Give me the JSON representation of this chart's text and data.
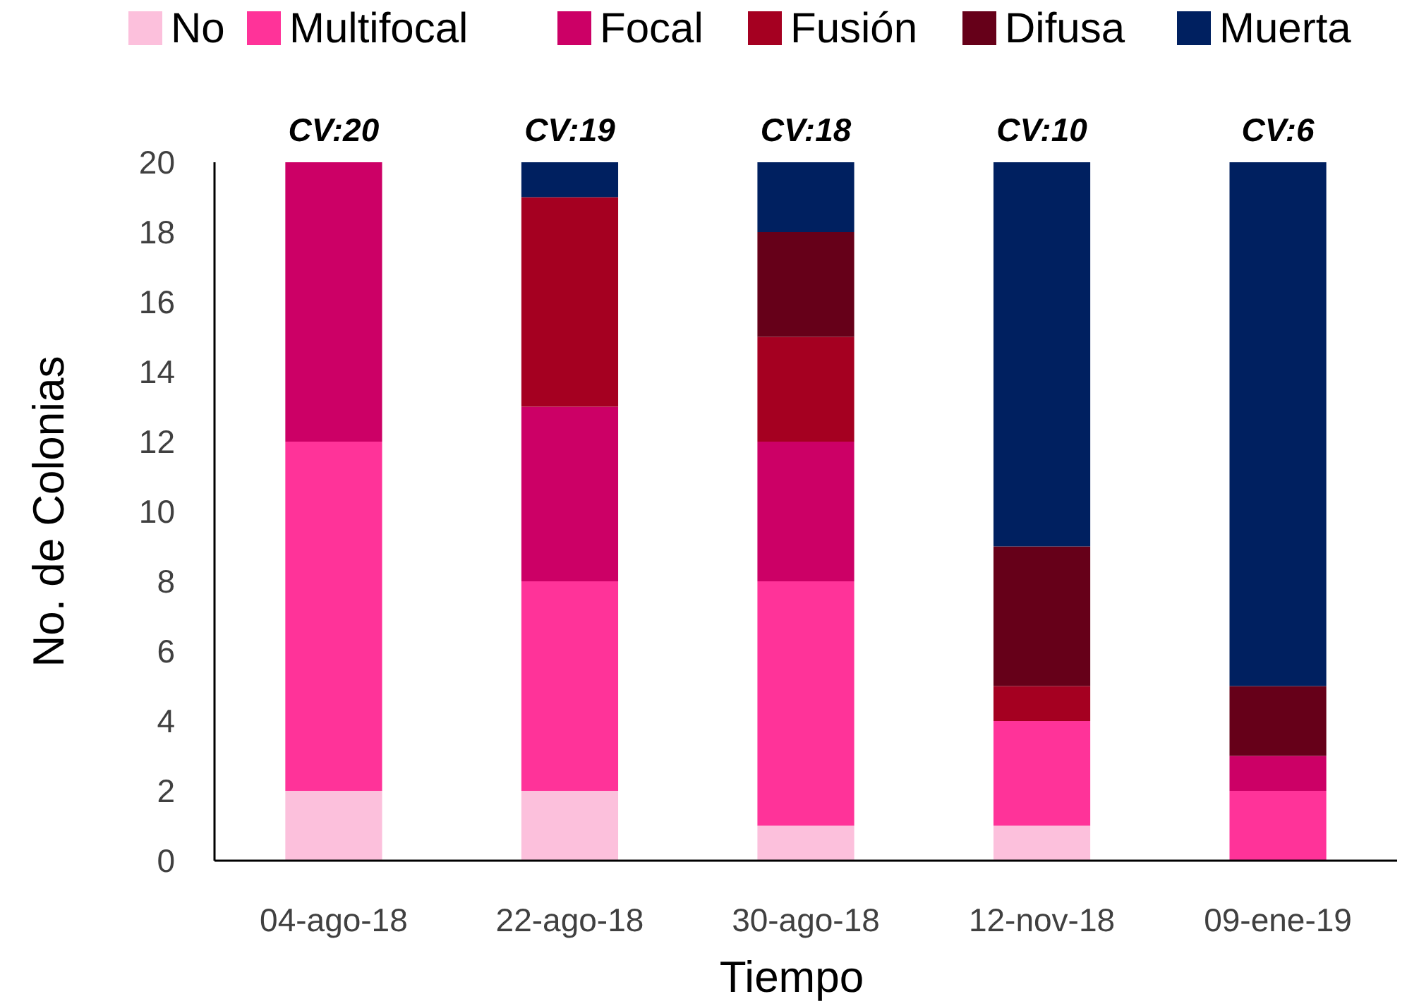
{
  "chart_data": {
    "type": "bar",
    "stacked": true,
    "xlabel": "Tiempo",
    "ylabel": "No. de Colonias",
    "categories": [
      "04-ago-18",
      "22-ago-18",
      "30-ago-18",
      "12-nov-18",
      "09-ene-19"
    ],
    "series": [
      {
        "name": "No",
        "color": "#fcc0dc",
        "values": [
          2,
          2,
          1,
          1,
          0
        ]
      },
      {
        "name": "Multifocal",
        "color": "#ff3399",
        "values": [
          10,
          6,
          7,
          3,
          2
        ]
      },
      {
        "name": "Focal",
        "color": "#cc0066",
        "values": [
          8,
          5,
          4,
          0,
          1
        ]
      },
      {
        "name": "Fusión",
        "color": "#a50021",
        "values": [
          0,
          6,
          3,
          1,
          0
        ]
      },
      {
        "name": "Difusa",
        "color": "#660019",
        "values": [
          0,
          0,
          3,
          4,
          2
        ]
      },
      {
        "name": "Muerta",
        "color": "#002060",
        "values": [
          0,
          1,
          2,
          11,
          15
        ]
      }
    ],
    "ylim": [
      0,
      20
    ],
    "yticks": [
      0,
      2,
      4,
      6,
      8,
      10,
      12,
      14,
      16,
      18,
      20
    ],
    "grid": false,
    "legend": "top",
    "annotations": [
      {
        "text": "CV:20",
        "x": "04-ago-18",
        "y": 20
      },
      {
        "text": "CV:19",
        "x": "22-ago-18",
        "y": 20
      },
      {
        "text": "CV:18",
        "x": "30-ago-18",
        "y": 20
      },
      {
        "text": "CV:10",
        "x": "12-nov-18",
        "y": 20
      },
      {
        "text": "CV:6",
        "x": "09-ene-19",
        "y": 20
      }
    ]
  }
}
